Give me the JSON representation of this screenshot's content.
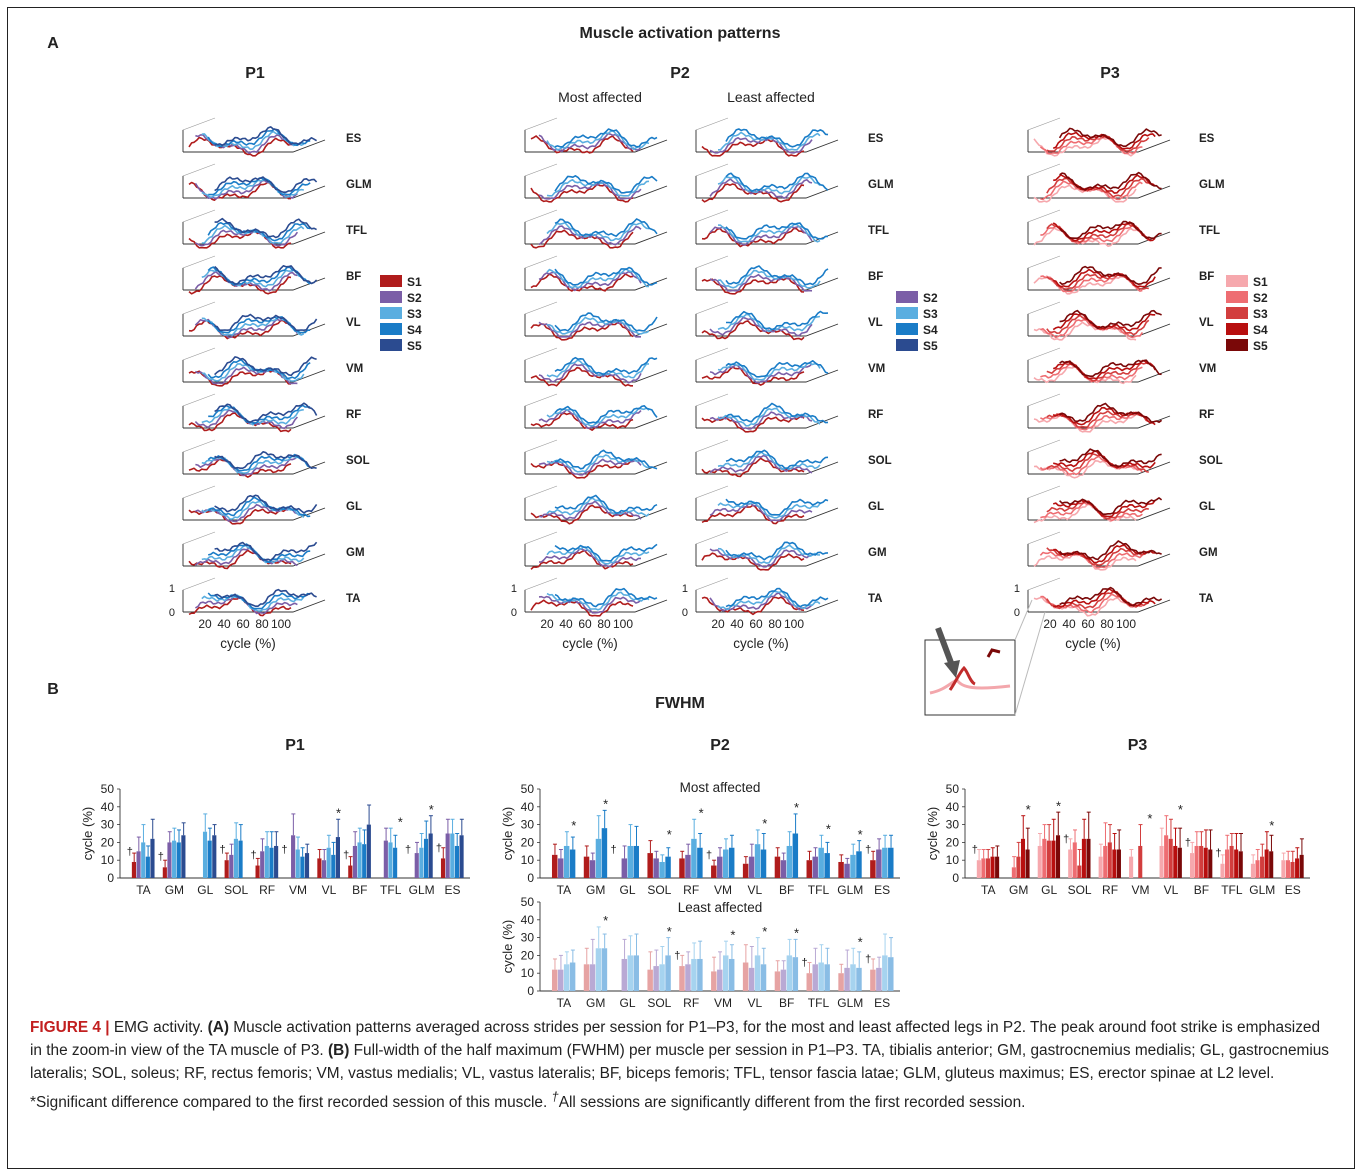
{
  "panel_a": {
    "label": "A",
    "title": "Muscle activation patterns",
    "muscles": [
      "ES",
      "GLM",
      "TFL",
      "BF",
      "VL",
      "VM",
      "RF",
      "SOL",
      "GL",
      "GM",
      "TA"
    ],
    "axis_label": "cycle (%)",
    "x_ticks": [
      "20",
      "40",
      "60",
      "80",
      "100"
    ],
    "y_ticks": [
      "1",
      "0"
    ],
    "groups": [
      {
        "title": "P1",
        "subtitle_left": "",
        "subtitle_right": ""
      },
      {
        "title": "P2",
        "subtitle_left": "Most affected",
        "subtitle_right": "Least affected"
      },
      {
        "title": "P3",
        "subtitle_left": "",
        "subtitle_right": ""
      }
    ],
    "legends": {
      "p1": [
        "S1",
        "S2",
        "S3",
        "S4",
        "S5"
      ],
      "p2": [
        "S2",
        "S3",
        "S4",
        "S5"
      ],
      "p3": [
        "S1",
        "S2",
        "S3",
        "S4",
        "S5"
      ]
    }
  },
  "panel_b": {
    "label": "B",
    "title": "FWHM",
    "ylabel": "cycle (%)",
    "subtitle_most": "Most affected",
    "subtitle_least": "Least affected"
  },
  "colors": {
    "blue_sessions": [
      "#b01c1c",
      "#7b5ea7",
      "#5aaee0",
      "#1a7cc7",
      "#2b4b90"
    ],
    "red_sessions": [
      "#f6a8ad",
      "#ee6d72",
      "#d23e3e",
      "#b80f0f",
      "#7a0808"
    ]
  },
  "caption": {
    "figure_label": "FIGURE 4 |",
    "lead": " EMG activity. ",
    "a_label": "(A)",
    "a_text": " Muscle activation patterns averaged across strides per session for P1–P3, for the most and least affected legs in P2. The peak around foot strike is emphasized in the zoom-in view of the TA muscle of P3. ",
    "b_label": "(B)",
    "b_text": " Full-width of the half maximum (FWHM) per muscle per session in P1–P3. TA, tibialis anterior; GM, gastrocnemius medialis; GL, gastrocnemius lateralis; SOL, soleus; RF, rectus femoris; VM, vastus medialis; VL, vastus lateralis; BF, biceps femoris; TFL, tensor fascia latae; GLM, gluteus maximus; ES, erector spinae at L2 level. *Significant difference compared to the first recorded session of this muscle. ",
    "dagger": "†",
    "end_text": "All sessions are significantly different from the first recorded session."
  },
  "chart_data": [
    {
      "type": "bar",
      "title": "P1",
      "ylabel": "cycle (%)",
      "ylim": [
        0,
        50
      ],
      "yticks": [
        0,
        10,
        20,
        30,
        40,
        50
      ],
      "categories": [
        "TA",
        "GM",
        "GL",
        "SOL",
        "RF",
        "VM",
        "VL",
        "BF",
        "TFL",
        "GLM",
        "ES"
      ],
      "series": [
        {
          "name": "S1",
          "color": "#b01c1c",
          "values": [
            9,
            6,
            null,
            10,
            7,
            null,
            11,
            7,
            null,
            null,
            11
          ]
        },
        {
          "name": "S2",
          "color": "#7b5ea7",
          "values": [
            15,
            20,
            null,
            13,
            15,
            24,
            10,
            18,
            21,
            14,
            25
          ]
        },
        {
          "name": "S3",
          "color": "#5aaee0",
          "values": [
            20,
            21,
            26,
            22,
            18,
            16,
            17,
            20,
            20,
            17,
            25
          ]
        },
        {
          "name": "S4",
          "color": "#1a7cc7",
          "values": [
            12,
            20,
            21,
            21,
            17,
            12,
            13,
            19,
            17,
            22,
            18
          ]
        },
        {
          "name": "S5",
          "color": "#2b4b90",
          "values": [
            22,
            24,
            24,
            null,
            18,
            14,
            23,
            30,
            null,
            25,
            24
          ]
        }
      ],
      "errors": [
        [
          5,
          4,
          null,
          4,
          4,
          null,
          5,
          5,
          null,
          null,
          6
        ],
        [
          8,
          6,
          null,
          6,
          7,
          12,
          6,
          8,
          7,
          6,
          8
        ],
        [
          10,
          7,
          10,
          9,
          8,
          7,
          7,
          8,
          8,
          8,
          8
        ],
        [
          6,
          7,
          7,
          9,
          9,
          5,
          7,
          8,
          7,
          10,
          7
        ],
        [
          11,
          7,
          6,
          null,
          8,
          5,
          10,
          11,
          null,
          10,
          9
        ]
      ],
      "marks": {
        "dagger": [
          "TA",
          "GM",
          "SOL",
          "RF",
          "VM",
          "BF",
          "GLM",
          "ES"
        ],
        "star": [
          "VL",
          "TFL",
          "GLM"
        ]
      }
    },
    {
      "type": "bar",
      "title": "P2",
      "subtitle": "Most affected",
      "ylabel": "cycle (%)",
      "ylim": [
        0,
        50
      ],
      "yticks": [
        0,
        10,
        20,
        30,
        40,
        50
      ],
      "categories": [
        "TA",
        "GM",
        "GL",
        "SOL",
        "RF",
        "VM",
        "VL",
        "BF",
        "TFL",
        "GLM",
        "ES"
      ],
      "series": [
        {
          "name": "S2",
          "color": "#b01c1c",
          "values": [
            13,
            12,
            null,
            14,
            11,
            7,
            8,
            12,
            10,
            9,
            10
          ]
        },
        {
          "name": "S3",
          "color": "#7b5ea7",
          "values": [
            11,
            10,
            11,
            11,
            13,
            12,
            12,
            10,
            12,
            8,
            16
          ]
        },
        {
          "name": "S4",
          "color": "#5aaee0",
          "values": [
            18,
            22,
            18,
            9,
            22,
            16,
            19,
            18,
            17,
            13,
            17
          ]
        },
        {
          "name": "S5",
          "color": "#1a7cc7",
          "values": [
            16,
            28,
            18,
            12,
            17,
            17,
            16,
            25,
            14,
            15,
            17
          ]
        }
      ],
      "errors": [
        [
          6,
          6,
          null,
          7,
          4,
          3,
          4,
          5,
          5,
          4,
          5
        ],
        [
          5,
          4,
          7,
          4,
          6,
          5,
          7,
          4,
          5,
          3,
          6
        ],
        [
          8,
          13,
          12,
          4,
          11,
          6,
          8,
          8,
          7,
          6,
          7
        ],
        [
          7,
          10,
          11,
          5,
          8,
          7,
          9,
          11,
          6,
          6,
          7
        ]
      ],
      "marks": {
        "dagger": [
          "GL",
          "VM",
          "ES"
        ],
        "star": [
          "TA",
          "GM",
          "SOL",
          "RF",
          "VL",
          "BF",
          "TFL",
          "GLM"
        ]
      }
    },
    {
      "type": "bar",
      "title": "P2",
      "subtitle": "Least affected",
      "ylabel": "cycle (%)",
      "ylim": [
        0,
        50
      ],
      "yticks": [
        0,
        10,
        20,
        30,
        40,
        50
      ],
      "categories": [
        "TA",
        "GM",
        "GL",
        "SOL",
        "RF",
        "VM",
        "VL",
        "BF",
        "TFL",
        "GLM",
        "ES"
      ],
      "series": [
        {
          "name": "S2",
          "color": "#e6a3a3",
          "values": [
            12,
            15,
            null,
            12,
            14,
            11,
            16,
            11,
            10,
            10,
            12
          ]
        },
        {
          "name": "S3",
          "color": "#b9a9d4",
          "values": [
            12,
            15,
            18,
            14,
            15,
            12,
            13,
            12,
            15,
            13,
            13
          ]
        },
        {
          "name": "S4",
          "color": "#a6d3ef",
          "values": [
            15,
            24,
            20,
            15,
            18,
            20,
            20,
            20,
            16,
            15,
            20
          ]
        },
        {
          "name": "S5",
          "color": "#8abde5",
          "values": [
            16,
            24,
            20,
            20,
            18,
            18,
            15,
            19,
            15,
            13,
            19
          ]
        }
      ],
      "errors": [
        [
          6,
          9,
          null,
          10,
          6,
          8,
          10,
          6,
          6,
          5,
          6
        ],
        [
          8,
          14,
          11,
          9,
          7,
          10,
          12,
          5,
          9,
          10,
          6
        ],
        [
          7,
          12,
          11,
          10,
          9,
          8,
          10,
          9,
          10,
          9,
          12
        ],
        [
          7,
          8,
          12,
          10,
          10,
          8,
          9,
          10,
          9,
          9,
          11
        ]
      ],
      "marks": {
        "dagger": [
          "RF",
          "TFL",
          "ES"
        ],
        "star": [
          "GM",
          "SOL",
          "VM",
          "VL",
          "BF",
          "GLM"
        ]
      }
    },
    {
      "type": "bar",
      "title": "P3",
      "ylabel": "cycle (%)",
      "ylim": [
        0,
        50
      ],
      "yticks": [
        0,
        10,
        20,
        30,
        40,
        50
      ],
      "categories": [
        "TA",
        "GM",
        "GL",
        "SOL",
        "RF",
        "VM",
        "VL",
        "BF",
        "TFL",
        "GLM",
        "ES"
      ],
      "series": [
        {
          "name": "S1",
          "color": "#f6a8ad",
          "values": [
            10,
            null,
            18,
            16,
            12,
            12,
            18,
            14,
            8,
            8,
            10
          ]
        },
        {
          "name": "S2",
          "color": "#ee6d72",
          "values": [
            11,
            6,
            22,
            20,
            18,
            null,
            24,
            18,
            16,
            10,
            10
          ]
        },
        {
          "name": "S3",
          "color": "#d23e3e",
          "values": [
            11,
            12,
            21,
            7,
            20,
            18,
            22,
            18,
            18,
            12,
            9
          ]
        },
        {
          "name": "S4",
          "color": "#b80f0f",
          "values": [
            12,
            22,
            21,
            22,
            16,
            null,
            18,
            17,
            16,
            16,
            11
          ]
        },
        {
          "name": "S5",
          "color": "#7a0808",
          "values": [
            12,
            16,
            24,
            22,
            16,
            null,
            17,
            16,
            15,
            15,
            13
          ]
        }
      ],
      "errors": [
        [
          6,
          null,
          7,
          6,
          7,
          4,
          10,
          6,
          5,
          5,
          4
        ],
        [
          5,
          6,
          8,
          7,
          13,
          null,
          11,
          8,
          8,
          6,
          5
        ],
        [
          5,
          8,
          9,
          9,
          10,
          12,
          11,
          8,
          7,
          7,
          6
        ],
        [
          5,
          13,
          12,
          11,
          9,
          null,
          10,
          10,
          9,
          10,
          6
        ],
        [
          6,
          12,
          13,
          15,
          11,
          null,
          11,
          11,
          10,
          9,
          9
        ]
      ],
      "marks": {
        "dagger": [
          "TA",
          "SOL",
          "BF",
          "TFL"
        ],
        "star": [
          "GM",
          "GL",
          "VM",
          "VL",
          "GLM"
        ]
      }
    }
  ]
}
